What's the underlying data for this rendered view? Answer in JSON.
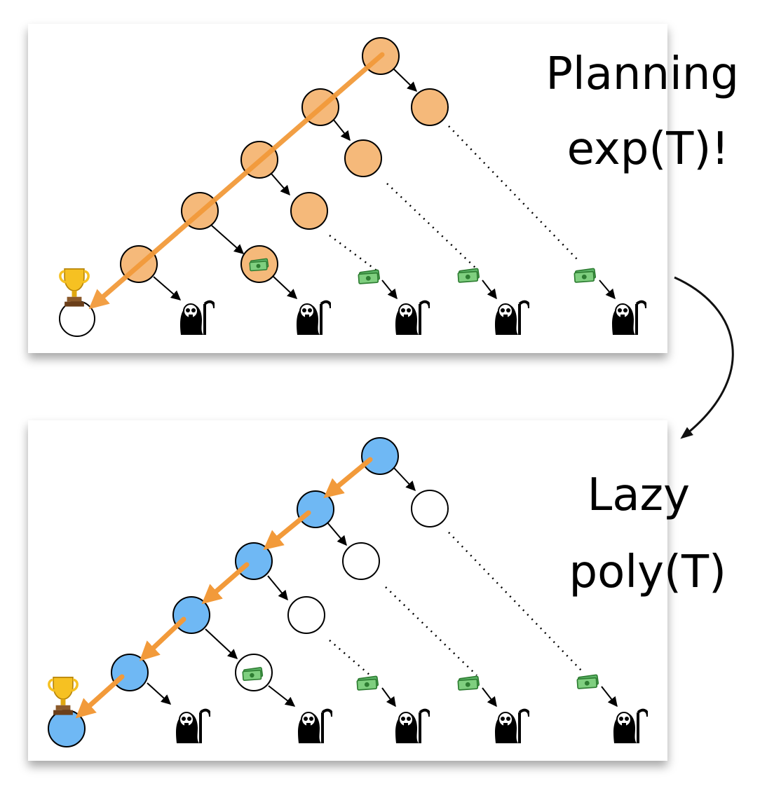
{
  "top_panel": {
    "label_line1": "Planning",
    "label_line2": "exp(T)!",
    "node_fill": "#f5b97a",
    "path_color": "#f29a3a"
  },
  "bottom_panel": {
    "label_line1": "Lazy",
    "label_line2": "poly(T)",
    "node_fill": "#6fb8f4",
    "unvisited_fill": "#ffffff",
    "path_color": "#f29a3a"
  },
  "icons": {
    "goal": "trophy-icon",
    "reward": "money-icon",
    "death": "grim-reaper-icon"
  }
}
